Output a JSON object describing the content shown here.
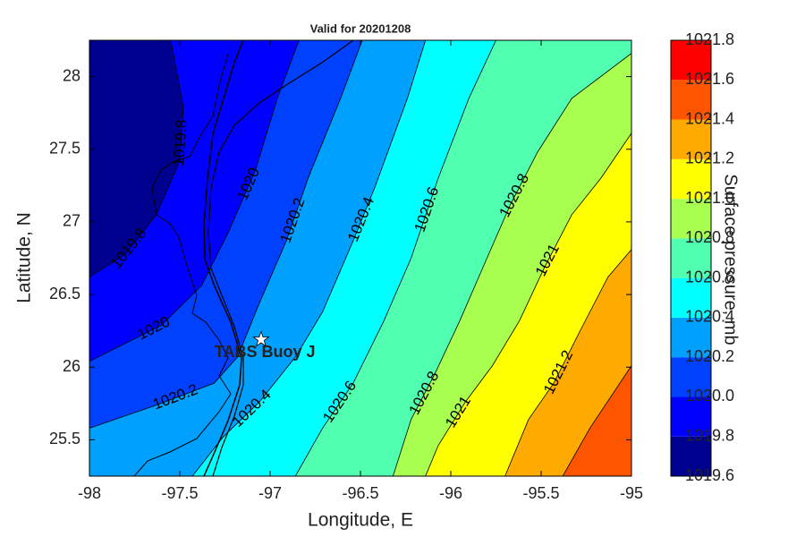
{
  "chart_data": {
    "type": "contour",
    "title": "Valid for 20201208",
    "xlabel": "Longitude, E",
    "ylabel": "Latitude, N",
    "xlim": [
      -98,
      -95
    ],
    "ylim": [
      25.25,
      28.25
    ],
    "xticks": [
      -98,
      -97.5,
      -97,
      -96.5,
      -96,
      -95.5,
      -95
    ],
    "yticks": [
      25.5,
      26,
      26.5,
      27,
      27.5,
      28
    ],
    "colorbar": {
      "label": "Surface pressure, mb",
      "ticks": [
        {
          "value": 1019.6,
          "label": "1019.6"
        },
        {
          "value": 1019.8,
          "label": "1019.8"
        },
        {
          "value": 1020.0,
          "label": "1020.0"
        },
        {
          "value": 1020.2,
          "label": "1020.2"
        },
        {
          "value": 1020.4,
          "label": "1020.4"
        },
        {
          "value": 1020.6,
          "label": "1020.6"
        },
        {
          "value": 1020.8,
          "label": "1020.8"
        },
        {
          "value": 1021.0,
          "label": "1021.0"
        },
        {
          "value": 1021.2,
          "label": "1021.2"
        },
        {
          "value": 1021.4,
          "label": "1021.4"
        },
        {
          "value": 1021.6,
          "label": "1021.6"
        },
        {
          "value": 1021.8,
          "label": "1021.8"
        }
      ],
      "colors": [
        "#00008f",
        "#0000ff",
        "#0040ff",
        "#00a0ff",
        "#00ffff",
        "#50ffb0",
        "#a8ff50",
        "#ffff00",
        "#ffaa00",
        "#ff5500",
        "#ff0000"
      ]
    },
    "contours": [
      {
        "level": 1019.8,
        "lon": [
          -97.55,
          -97.48,
          -97.5,
          -97.63,
          -97.8,
          -98
        ],
        "lat": [
          28.25,
          27.79,
          27.42,
          27.05,
          26.78,
          26.62
        ]
      },
      {
        "level": 1020,
        "lon": [
          -96.84,
          -96.96,
          -97.08,
          -97.23,
          -97.38,
          -97.6,
          -98
        ],
        "lat": [
          28.25,
          27.85,
          27.36,
          26.93,
          26.56,
          26.29,
          26.04
        ]
      },
      {
        "level": 1020.2,
        "lon": [
          -96.49,
          -96.61,
          -96.79,
          -96.91,
          -97.06,
          -97.18,
          -97.31,
          -97.65,
          -98
        ],
        "lat": [
          28.25,
          27.85,
          27.3,
          26.87,
          26.44,
          26.07,
          25.89,
          25.73,
          25.58
        ]
      },
      {
        "level": 1020.4,
        "lon": [
          -96.14,
          -96.24,
          -96.42,
          -96.54,
          -96.71,
          -96.86,
          -97.06,
          -97.26,
          -97.43
        ],
        "lat": [
          28.25,
          27.85,
          27.24,
          26.87,
          26.38,
          26.07,
          25.76,
          25.52,
          25.25
        ]
      },
      {
        "level": 1020.6,
        "lon": [
          -95.75,
          -95.9,
          -96.07,
          -96.22,
          -96.37,
          -96.54,
          -96.71,
          -96.86
        ],
        "lat": [
          28.25,
          27.85,
          27.3,
          26.75,
          26.32,
          25.89,
          25.58,
          25.25
        ]
      },
      {
        "level": 1020.8,
        "lon": [
          -95,
          -95.33,
          -95.52,
          -95.67,
          -95.8,
          -95.95,
          -96.09,
          -96.22,
          -96.32
        ],
        "lat": [
          28.16,
          27.85,
          27.48,
          27.12,
          26.75,
          26.32,
          25.95,
          25.64,
          25.25
        ]
      },
      {
        "level": 1021,
        "lon": [
          -95,
          -95.17,
          -95.33,
          -95.48,
          -95.62,
          -95.77,
          -95.92,
          -96.07,
          -96.14
        ],
        "lat": [
          27.61,
          27.3,
          27.05,
          26.69,
          26.32,
          26.01,
          25.76,
          25.46,
          25.25
        ]
      },
      {
        "level": 1021.2,
        "lon": [
          -95,
          -95.13,
          -95.28,
          -95.43,
          -95.57,
          -95.7
        ],
        "lat": [
          26.81,
          26.62,
          26.26,
          25.89,
          25.64,
          25.25
        ]
      },
      {
        "level": 1021.4,
        "lon": [
          -95,
          -95.23,
          -95.38
        ],
        "lat": [
          26.01,
          25.58,
          25.25
        ]
      }
    ],
    "annotations": [
      {
        "text": "TABS Buoy J",
        "lon": -97.05,
        "lat": 26.19
      }
    ]
  }
}
